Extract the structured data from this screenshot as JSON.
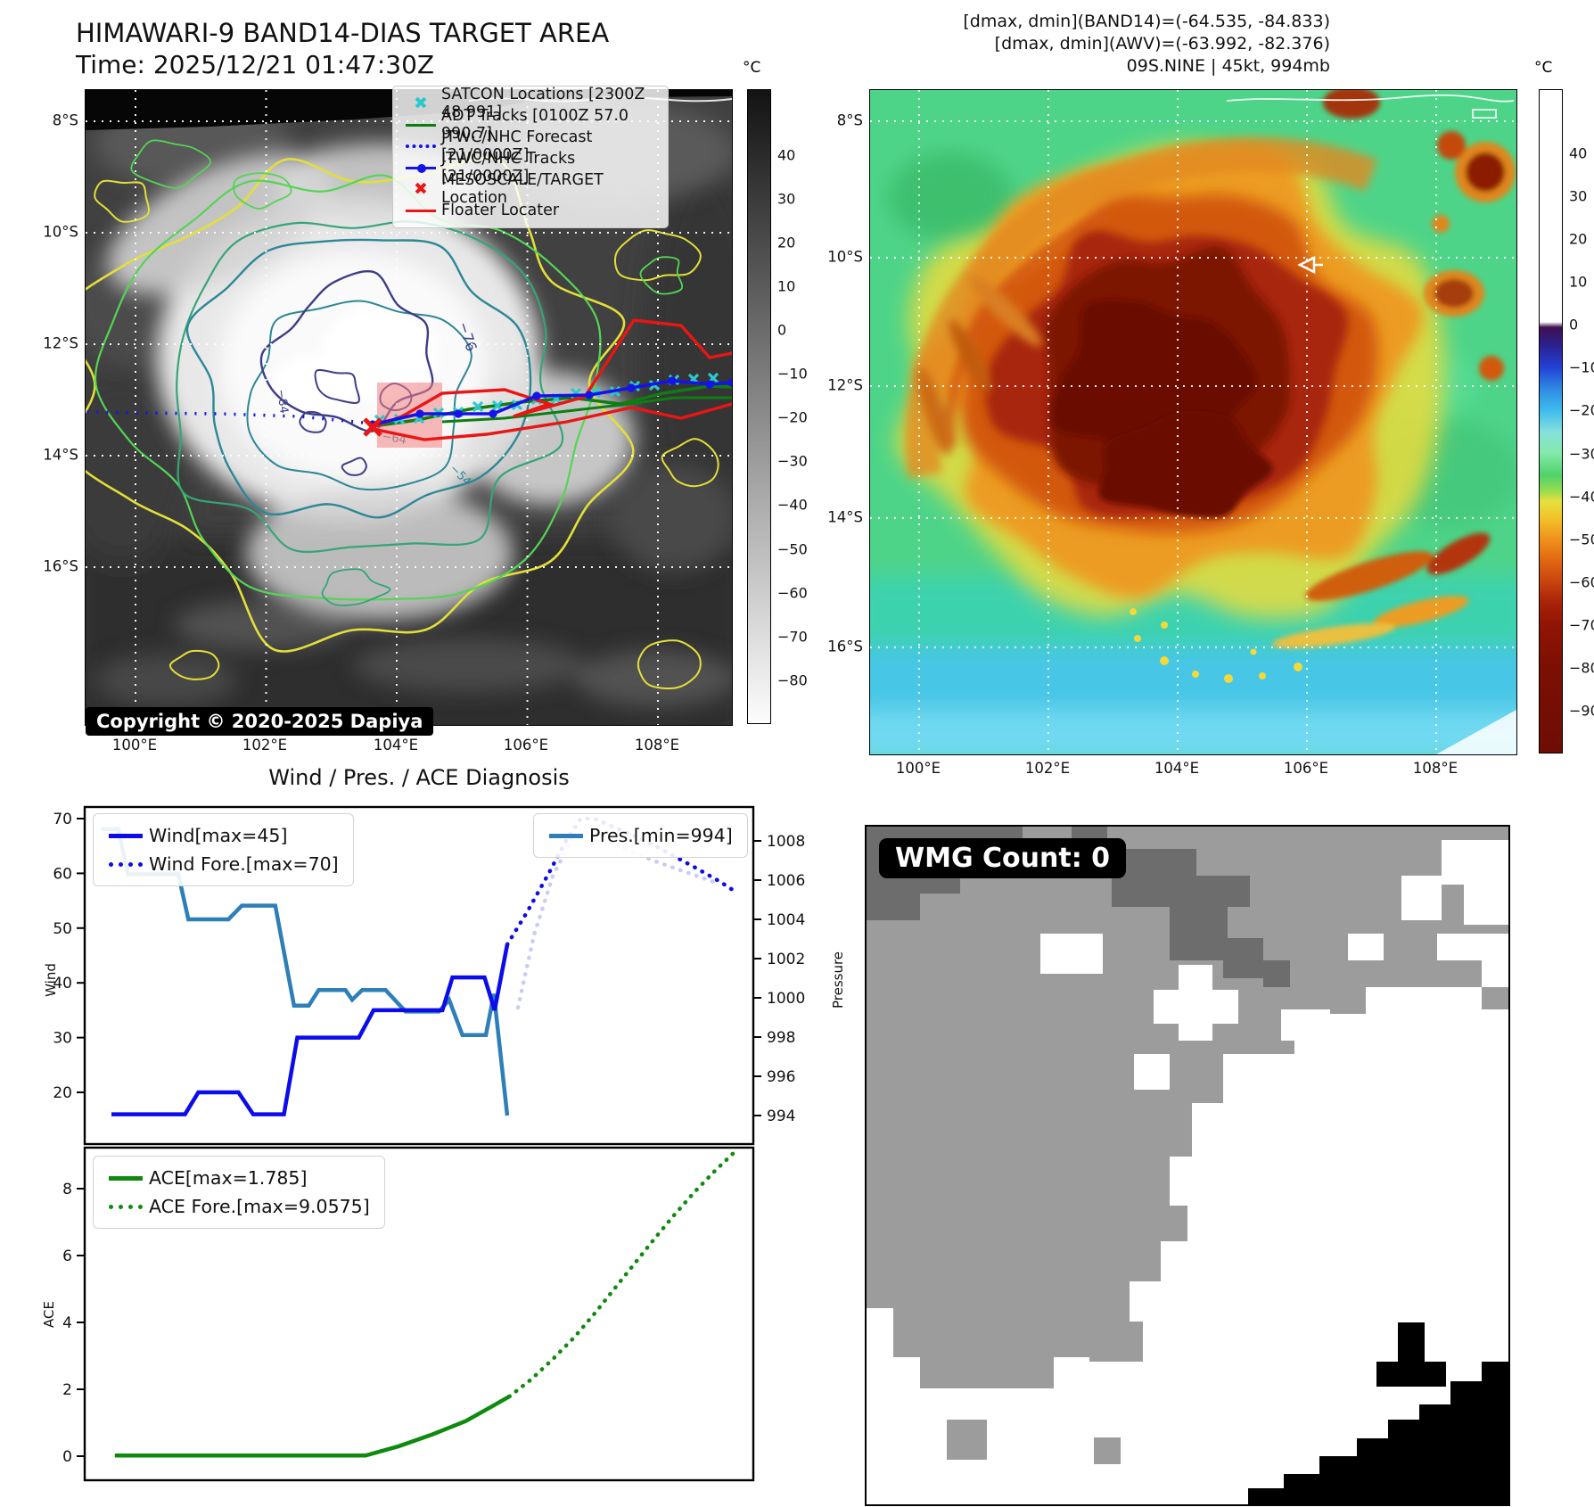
{
  "header": {
    "title": "HIMAWARI-9 BAND14-DIAS TARGET AREA",
    "time_line": "Time: 2025/12/21 01:47:30Z",
    "right_line1": "[dmax, dmin](BAND14)=(-64.535, -84.833)",
    "right_line2": "[dmax, dmin](AWV)=(-63.992, -82.376)",
    "right_line3": "09S.NINE | 45kt, 994mb"
  },
  "band14_map": {
    "legend": [
      {
        "label": "SATCON Locations [2300Z 48 991]",
        "marker": "x",
        "color": "#2cc8cc"
      },
      {
        "label": "ADT Tracks [0100Z 57.0 990.7]",
        "marker": "line",
        "color": "#0f7d12"
      },
      {
        "label": "JTWC/NHC Forecast [21/0000Z]",
        "marker": "dotted",
        "color": "#1313ea"
      },
      {
        "label": "JTWC/NHC Tracks [21/0000Z]",
        "marker": "line-dot",
        "color": "#1313ea"
      },
      {
        "label": "MESOSCALE/TARGET Location",
        "marker": "x",
        "color": "#ea1515"
      },
      {
        "label": "Floater Locater",
        "marker": "line",
        "color": "#ea1515"
      }
    ],
    "copyright": "Copyright © 2020-2025 Dapiya",
    "x_ticks": [
      "100°E",
      "102°E",
      "104°E",
      "106°E",
      "108°E"
    ],
    "y_ticks": [
      "8°S",
      "10°S",
      "12°S",
      "14°S",
      "16°S"
    ],
    "contour_labels": [
      "−76",
      "−84",
      "−64",
      "−54"
    ],
    "target_square_color": "#f08080",
    "colorbar": {
      "unit": "°C",
      "ticks": [
        "40",
        "30",
        "20",
        "10",
        "0",
        "−10",
        "−20",
        "−30",
        "−40",
        "−50",
        "−60",
        "−70",
        "−80"
      ]
    }
  },
  "awv_map": {
    "x_ticks": [
      "100°E",
      "102°E",
      "104°E",
      "106°E",
      "108°E"
    ],
    "y_ticks": [
      "8°S",
      "10°S",
      "12°S",
      "14°S",
      "16°S"
    ],
    "colorbar": {
      "unit": "°C",
      "ticks": [
        "40",
        "30",
        "20",
        "10",
        "0",
        "−10",
        "−20",
        "−30",
        "−40",
        "−50",
        "−60",
        "−70",
        "−80",
        "−90"
      ]
    }
  },
  "wmg": {
    "count_label": "WMG Count: 0"
  },
  "chart_data": [
    {
      "type": "line",
      "title": "Wind / Pres. / ACE Diagnosis",
      "x_axis": "time (axis shown without tick labels, values normalized 0-1)",
      "ylabel_left": "Wind",
      "ylabel_right": "Pressure",
      "y_left_ticks": [
        20,
        30,
        40,
        50,
        60,
        70
      ],
      "y_left_range": [
        10.2,
        72.1
      ],
      "y_right_ticks": [
        994,
        996,
        998,
        1000,
        1002,
        1004,
        1006,
        1008
      ],
      "y_right_range": [
        992.4,
        1009.9
      ],
      "legend_left": [
        "Wind[max=45]",
        "Wind Fore.[max=70]"
      ],
      "legend_right": [
        "Pres.[min=994]"
      ],
      "series": [
        {
          "name": "Wind[max=45]",
          "axis": "left",
          "style": "solid",
          "color": "#0b0bec",
          "x": [
            0.04,
            0.15,
            0.17,
            0.23,
            0.252,
            0.298,
            0.318,
            0.41,
            0.432,
            0.535,
            0.55,
            0.598,
            0.613,
            0.632
          ],
          "y": [
            16,
            16,
            20,
            20,
            16,
            16,
            30,
            30,
            35,
            35,
            41,
            41,
            35,
            47
          ]
        },
        {
          "name": "Wind Fore.[max=70]",
          "axis": "left",
          "style": "dotted",
          "color": "#0b0bec",
          "x": [
            0.632,
            0.662,
            0.694,
            0.72,
            0.742,
            0.762,
            0.8,
            0.838,
            0.876,
            0.914,
            0.95,
            0.975
          ],
          "y": [
            47,
            53,
            60,
            66,
            70,
            70,
            68,
            66,
            63.5,
            61,
            58.5,
            56.5
          ]
        },
        {
          "name": "Pres.[min=994]",
          "axis": "right",
          "style": "solid",
          "color": "#2e7fb8",
          "x": [
            0.025,
            0.05,
            0.065,
            0.14,
            0.155,
            0.215,
            0.235,
            0.285,
            0.313,
            0.335,
            0.35,
            0.39,
            0.4,
            0.415,
            0.45,
            0.48,
            0.53,
            0.545,
            0.565,
            0.6,
            0.612,
            0.632
          ],
          "y": [
            1008.6,
            1008.6,
            1006.3,
            1006.3,
            1004.0,
            1004.0,
            1004.7,
            1004.7,
            999.6,
            999.6,
            1000.4,
            1000.4,
            999.9,
            1000.4,
            1000.4,
            999.3,
            999.3,
            999.9,
            998.1,
            998.1,
            1000.2,
            994.0
          ]
        },
        {
          "name": "pres-forecast-faint",
          "axis": "right",
          "style": "dotted",
          "color": "#c9ccf4",
          "x": [
            0.648,
            0.672,
            0.7,
            0.728,
            0.756,
            0.8,
            0.85,
            0.9,
            0.95
          ],
          "y": [
            999.5,
            1003.2,
            1006.2,
            1008.1,
            1008.5,
            1007.7,
            1007.0,
            1006.4,
            1005.8
          ]
        }
      ]
    },
    {
      "type": "line",
      "ylabel_left": "ACE",
      "y_left_ticks": [
        0,
        2,
        4,
        6,
        8
      ],
      "y_left_range": [
        -0.85,
        9.3
      ],
      "legend_left": [
        "ACE[max=1.785]",
        "ACE Fore.[max=9.0575]"
      ],
      "series": [
        {
          "name": "ACE[max=1.785]",
          "axis": "left",
          "style": "solid",
          "color": "#0f8a0f",
          "x": [
            0.045,
            0.42,
            0.47,
            0.52,
            0.57,
            0.61,
            0.635
          ],
          "y": [
            0.02,
            0.02,
            0.3,
            0.65,
            1.05,
            1.5,
            1.785
          ]
        },
        {
          "name": "ACE Fore.[max=9.0575]",
          "axis": "left",
          "style": "dotted",
          "color": "#0f8a0f",
          "x": [
            0.635,
            0.668,
            0.7,
            0.732,
            0.762,
            0.792,
            0.822,
            0.852,
            0.882,
            0.912,
            0.942,
            0.97
          ],
          "y": [
            1.785,
            2.3,
            2.9,
            3.55,
            4.25,
            5.0,
            5.75,
            6.5,
            7.22,
            7.9,
            8.52,
            9.0575
          ]
        }
      ]
    }
  ]
}
